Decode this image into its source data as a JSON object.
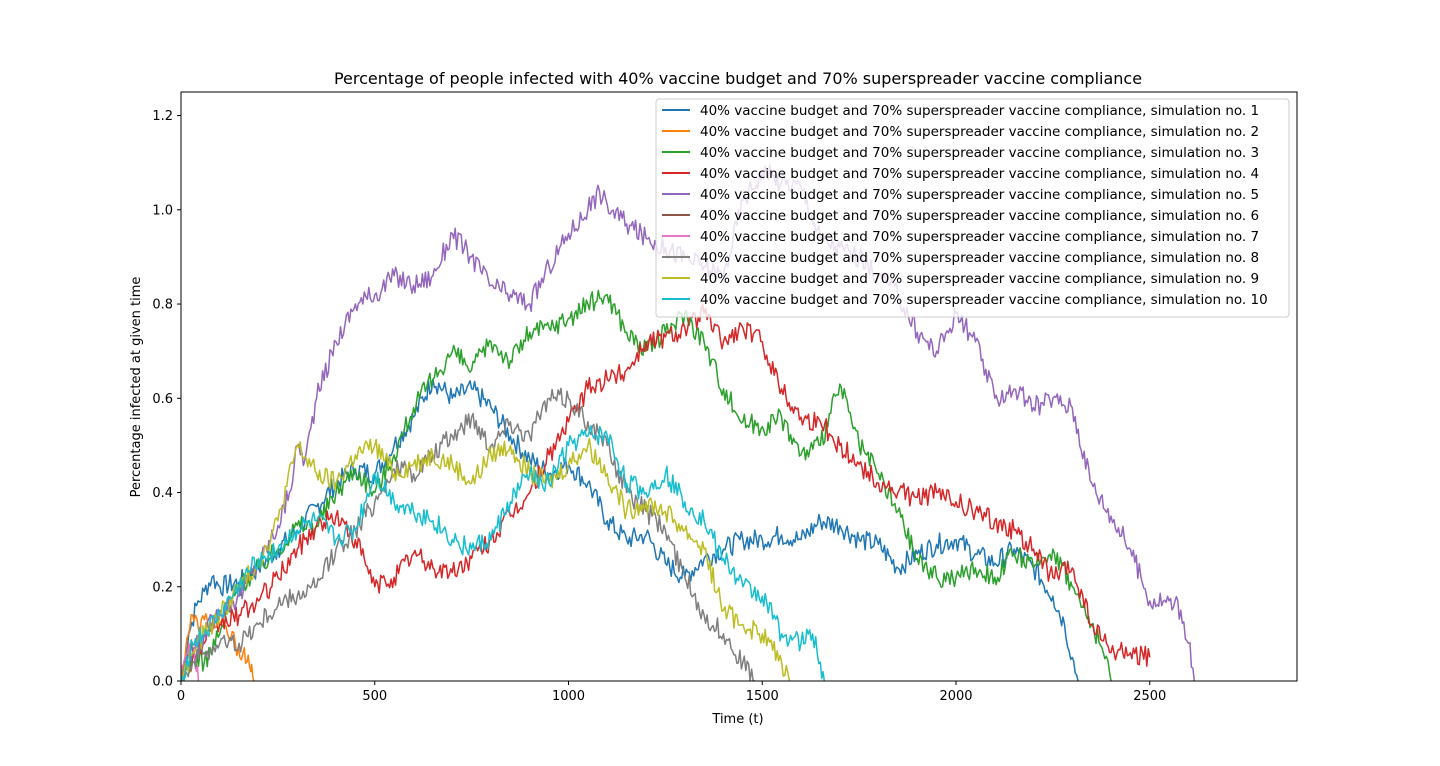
{
  "chart_data": {
    "type": "line",
    "title": "Percentage of people infected with 40% vaccine budget and 70% superspreader vaccine compliance",
    "xlabel": "Time (t)",
    "ylabel": "Percentage infected at given time",
    "xlim": [
      0,
      2880
    ],
    "ylim": [
      0,
      1.25
    ],
    "xticks": [
      0,
      500,
      1000,
      1500,
      2000,
      2500
    ],
    "xtick_labels": [
      "0",
      "500",
      "1000",
      "1500",
      "2000",
      "2500"
    ],
    "yticks": [
      0.0,
      0.2,
      0.4,
      0.6,
      0.8,
      1.0,
      1.2
    ],
    "ytick_labels": [
      "0.0",
      "0.2",
      "0.4",
      "0.6",
      "0.8",
      "1.0",
      "1.2"
    ],
    "grid": false,
    "legend_position": "top-right",
    "series": [
      {
        "name": "40% vaccine budget and 70% superspreader vaccine compliance, simulation no. 1",
        "color": "#1f77b4",
        "x": [
          0,
          20,
          40,
          60,
          80,
          100,
          150,
          200,
          250,
          300,
          350,
          400,
          450,
          500,
          550,
          600,
          650,
          700,
          750,
          800,
          850,
          900,
          950,
          1000,
          1050,
          1100,
          1150,
          1200,
          1250,
          1300,
          1350,
          1400,
          1450,
          1500,
          1550,
          1600,
          1650,
          1700,
          1750,
          1800,
          1850,
          1900,
          1950,
          2000,
          2050,
          2100,
          2150,
          2200,
          2250,
          2280,
          2300,
          2315
        ],
        "y": [
          0.0,
          0.1,
          0.16,
          0.19,
          0.22,
          0.2,
          0.21,
          0.24,
          0.28,
          0.32,
          0.37,
          0.42,
          0.45,
          0.44,
          0.5,
          0.56,
          0.64,
          0.6,
          0.62,
          0.58,
          0.52,
          0.47,
          0.44,
          0.46,
          0.42,
          0.34,
          0.3,
          0.31,
          0.25,
          0.22,
          0.26,
          0.28,
          0.3,
          0.3,
          0.31,
          0.3,
          0.34,
          0.33,
          0.3,
          0.29,
          0.24,
          0.27,
          0.29,
          0.3,
          0.27,
          0.25,
          0.28,
          0.24,
          0.18,
          0.12,
          0.05,
          0.0
        ]
      },
      {
        "name": "40% vaccine budget and 70% superspreader vaccine compliance, simulation no. 2",
        "color": "#ff7f0e",
        "x": [
          0,
          15,
          30,
          45,
          60,
          80,
          100,
          120,
          140,
          160,
          170,
          180,
          185,
          190
        ],
        "y": [
          0.0,
          0.09,
          0.14,
          0.11,
          0.13,
          0.12,
          0.12,
          0.1,
          0.08,
          0.06,
          0.04,
          0.02,
          0.01,
          0.0
        ]
      },
      {
        "name": "40% vaccine budget and 70% superspreader vaccine compliance, simulation no. 3",
        "color": "#2ca02c",
        "x": [
          0,
          30,
          60,
          100,
          150,
          200,
          250,
          300,
          350,
          400,
          450,
          500,
          550,
          600,
          650,
          700,
          750,
          800,
          850,
          900,
          950,
          1000,
          1050,
          1100,
          1150,
          1200,
          1250,
          1300,
          1350,
          1400,
          1450,
          1500,
          1550,
          1600,
          1650,
          1700,
          1750,
          1800,
          1850,
          1900,
          1950,
          2000,
          2050,
          2100,
          2150,
          2200,
          2250,
          2300,
          2350,
          2380,
          2400
        ],
        "y": [
          0.0,
          0.05,
          0.04,
          0.1,
          0.2,
          0.24,
          0.28,
          0.33,
          0.33,
          0.4,
          0.45,
          0.4,
          0.48,
          0.58,
          0.64,
          0.7,
          0.66,
          0.72,
          0.68,
          0.74,
          0.75,
          0.77,
          0.8,
          0.82,
          0.74,
          0.7,
          0.74,
          0.78,
          0.72,
          0.62,
          0.55,
          0.54,
          0.56,
          0.48,
          0.5,
          0.63,
          0.5,
          0.44,
          0.36,
          0.26,
          0.22,
          0.22,
          0.24,
          0.22,
          0.27,
          0.24,
          0.28,
          0.2,
          0.12,
          0.06,
          0.0
        ]
      },
      {
        "name": "40% vaccine budget and 70% superspreader vaccine compliance, simulation no. 4",
        "color": "#d62728",
        "x": [
          0,
          30,
          60,
          100,
          150,
          200,
          250,
          300,
          350,
          400,
          450,
          500,
          550,
          600,
          650,
          700,
          750,
          800,
          850,
          900,
          950,
          1000,
          1050,
          1100,
          1150,
          1200,
          1250,
          1300,
          1350,
          1400,
          1450,
          1500,
          1550,
          1600,
          1650,
          1700,
          1750,
          1800,
          1850,
          1900,
          1950,
          2000,
          2050,
          2100,
          2150,
          2200,
          2250,
          2300,
          2350,
          2400,
          2450,
          2500
        ],
        "y": [
          0.0,
          0.05,
          0.08,
          0.12,
          0.14,
          0.17,
          0.22,
          0.28,
          0.33,
          0.35,
          0.3,
          0.2,
          0.22,
          0.27,
          0.24,
          0.23,
          0.26,
          0.3,
          0.35,
          0.4,
          0.48,
          0.55,
          0.62,
          0.64,
          0.66,
          0.72,
          0.73,
          0.75,
          0.78,
          0.72,
          0.75,
          0.72,
          0.62,
          0.56,
          0.55,
          0.5,
          0.46,
          0.42,
          0.4,
          0.39,
          0.4,
          0.38,
          0.36,
          0.34,
          0.32,
          0.28,
          0.22,
          0.24,
          0.12,
          0.06,
          0.06,
          0.05
        ]
      },
      {
        "name": "40% vaccine budget and 70% superspreader vaccine compliance, simulation no. 5",
        "color": "#9467bd",
        "x": [
          0,
          30,
          60,
          100,
          150,
          200,
          250,
          280,
          300,
          320,
          350,
          400,
          450,
          500,
          550,
          600,
          650,
          700,
          750,
          800,
          850,
          900,
          950,
          1000,
          1050,
          1080,
          1100,
          1150,
          1200,
          1250,
          1300,
          1350,
          1400,
          1450,
          1500,
          1550,
          1600,
          1650,
          1700,
          1750,
          1800,
          1850,
          1900,
          1950,
          2000,
          2050,
          2100,
          2150,
          2200,
          2250,
          2300,
          2350,
          2400,
          2450,
          2500,
          2550,
          2580,
          2600,
          2615
        ],
        "y": [
          0.0,
          0.06,
          0.1,
          0.15,
          0.18,
          0.25,
          0.33,
          0.4,
          0.5,
          0.47,
          0.6,
          0.72,
          0.8,
          0.82,
          0.86,
          0.84,
          0.86,
          0.95,
          0.9,
          0.84,
          0.82,
          0.8,
          0.88,
          0.95,
          1.0,
          1.04,
          1.01,
          0.97,
          0.94,
          0.92,
          0.9,
          0.88,
          0.86,
          1.02,
          1.08,
          1.06,
          1.05,
          0.94,
          0.92,
          0.9,
          0.86,
          0.82,
          0.74,
          0.7,
          0.78,
          0.72,
          0.6,
          0.62,
          0.58,
          0.6,
          0.58,
          0.42,
          0.35,
          0.28,
          0.17,
          0.17,
          0.15,
          0.08,
          0.0
        ]
      },
      {
        "name": "40% vaccine budget and 70% superspreader vaccine compliance, simulation no. 6",
        "color": "#8c564b",
        "x": [
          0,
          10,
          20,
          30,
          40
        ],
        "y": [
          0.0,
          0.04,
          0.08,
          0.06,
          0.03
        ]
      },
      {
        "name": "40% vaccine budget and 70% superspreader vaccine compliance, simulation no. 7",
        "color": "#e377c2",
        "x": [
          0,
          10,
          20,
          30,
          40,
          45
        ],
        "y": [
          0.0,
          0.05,
          0.08,
          0.06,
          0.02,
          0.0
        ]
      },
      {
        "name": "40% vaccine budget and 70% superspreader vaccine compliance, simulation no. 8",
        "color": "#7f7f7f",
        "x": [
          0,
          30,
          60,
          100,
          150,
          200,
          250,
          300,
          350,
          400,
          450,
          500,
          550,
          600,
          650,
          700,
          750,
          800,
          850,
          900,
          950,
          1000,
          1050,
          1100,
          1150,
          1200,
          1250,
          1300,
          1350,
          1400,
          1450,
          1480
        ],
        "y": [
          0.0,
          0.04,
          0.06,
          0.08,
          0.08,
          0.12,
          0.16,
          0.18,
          0.2,
          0.28,
          0.32,
          0.38,
          0.45,
          0.44,
          0.48,
          0.52,
          0.56,
          0.5,
          0.55,
          0.52,
          0.6,
          0.6,
          0.55,
          0.5,
          0.4,
          0.36,
          0.32,
          0.22,
          0.14,
          0.1,
          0.04,
          0.0
        ]
      },
      {
        "name": "40% vaccine budget and 70% superspreader vaccine compliance, simulation no. 9",
        "color": "#bcbd22",
        "x": [
          0,
          30,
          60,
          100,
          150,
          200,
          250,
          300,
          350,
          400,
          450,
          500,
          550,
          600,
          650,
          700,
          750,
          800,
          850,
          900,
          950,
          1000,
          1050,
          1100,
          1150,
          1200,
          1250,
          1300,
          1350,
          1400,
          1450,
          1500,
          1550,
          1570
        ],
        "y": [
          0.0,
          0.06,
          0.1,
          0.14,
          0.2,
          0.25,
          0.34,
          0.5,
          0.44,
          0.42,
          0.48,
          0.5,
          0.44,
          0.46,
          0.48,
          0.46,
          0.42,
          0.48,
          0.5,
          0.44,
          0.42,
          0.46,
          0.5,
          0.44,
          0.36,
          0.38,
          0.36,
          0.32,
          0.28,
          0.15,
          0.12,
          0.1,
          0.04,
          0.0
        ]
      },
      {
        "name": "40% vaccine budget and 70% superspreader vaccine compliance, simulation no. 10",
        "color": "#17becf",
        "x": [
          0,
          30,
          60,
          100,
          150,
          200,
          250,
          300,
          350,
          400,
          450,
          500,
          550,
          600,
          650,
          700,
          750,
          800,
          850,
          900,
          950,
          1000,
          1050,
          1100,
          1150,
          1200,
          1250,
          1300,
          1350,
          1400,
          1450,
          1500,
          1550,
          1600,
          1630,
          1650,
          1660
        ],
        "y": [
          0.0,
          0.08,
          0.1,
          0.14,
          0.2,
          0.26,
          0.28,
          0.32,
          0.34,
          0.3,
          0.32,
          0.44,
          0.38,
          0.36,
          0.34,
          0.3,
          0.28,
          0.3,
          0.38,
          0.44,
          0.42,
          0.5,
          0.52,
          0.52,
          0.42,
          0.4,
          0.44,
          0.38,
          0.34,
          0.26,
          0.2,
          0.18,
          0.1,
          0.08,
          0.1,
          0.04,
          0.0
        ]
      }
    ]
  }
}
